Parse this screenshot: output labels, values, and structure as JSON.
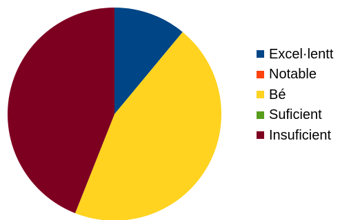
{
  "chart_data": {
    "type": "pie",
    "categories": [
      "Excel·lentt",
      "Notable",
      "Bé",
      "Suficient",
      "Insuficient"
    ],
    "values": [
      11,
      0,
      45,
      0,
      44
    ],
    "colors": [
      "#004586",
      "#ff420e",
      "#ffd320",
      "#579d1c",
      "#7e0021"
    ],
    "start_angle_deg": 0,
    "direction": "clockwise",
    "legend_position": "right",
    "title": ""
  }
}
